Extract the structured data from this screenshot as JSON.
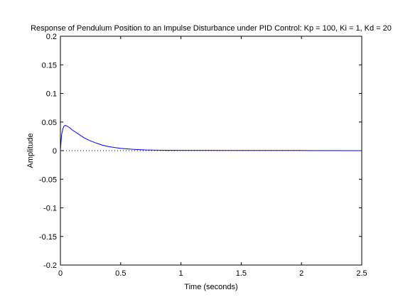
{
  "chart_data": {
    "type": "line",
    "title": "Response of Pendulum Position to an Impulse Disturbance under PID Control: Kp = 100, Ki = 1, Kd = 20",
    "xlabel": "Time (seconds)",
    "ylabel": "Amplitude",
    "xlim": [
      0,
      2.5
    ],
    "ylim": [
      -0.2,
      0.2
    ],
    "xticks": [
      0,
      0.5,
      1,
      1.5,
      2,
      2.5
    ],
    "xtick_labels": [
      "0",
      "0.5",
      "1",
      "1.5",
      "2",
      "2.5"
    ],
    "yticks": [
      -0.2,
      -0.15,
      -0.1,
      -0.05,
      0,
      0.05,
      0.1,
      0.15,
      0.2
    ],
    "ytick_labels": [
      "-0.2",
      "-0.15",
      "-0.1",
      "-0.05",
      "0",
      "0.05",
      "0.1",
      "0.15",
      "0.2"
    ],
    "grid": false,
    "reference_line": {
      "y": 0,
      "style": "dotted",
      "color": "#000000"
    },
    "series": [
      {
        "color": "#0000ff",
        "x": [
          0,
          0.005,
          0.01,
          0.02,
          0.03,
          0.04,
          0.05,
          0.07,
          0.1,
          0.15,
          0.2,
          0.25,
          0.3,
          0.35,
          0.4,
          0.45,
          0.5,
          0.6,
          0.7,
          0.8,
          0.9,
          1.0,
          1.2,
          1.5,
          2.0,
          2.05,
          2.5
        ],
        "y": [
          0,
          0.015,
          0.028,
          0.038,
          0.043,
          0.044,
          0.0435,
          0.041,
          0.036,
          0.029,
          0.022,
          0.017,
          0.013,
          0.0095,
          0.0072,
          0.0054,
          0.004,
          0.0023,
          0.0013,
          0.0008,
          0.0006,
          0.0005,
          0.0004,
          0.0003,
          0.0003,
          0.0001,
          0.0
        ]
      }
    ]
  }
}
